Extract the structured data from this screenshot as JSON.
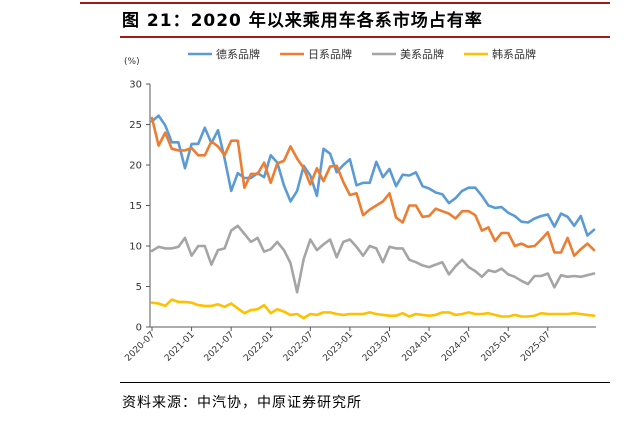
{
  "figure": {
    "title": "图 21：2020 年以来乘用车各系市场占有率",
    "source": "资料来源：中汽协，中原证券研究所"
  },
  "chart_data": {
    "type": "line",
    "ylabel": "(%)",
    "ylim": [
      0,
      30
    ],
    "yticks": [
      "0",
      "5",
      "10",
      "15",
      "20",
      "25",
      "30"
    ],
    "xtick_labels": [
      "2020-07",
      "2021-01",
      "2021-07",
      "2022-01",
      "2022-07",
      "2023-01",
      "2023-07",
      "2024-01",
      "2024-07",
      "2025-01",
      "2025-07"
    ],
    "grid": false,
    "legend_position": "top",
    "series": [
      {
        "name": "德系品牌",
        "color": "#5b9bd5",
        "values": [
          25.4,
          26.1,
          24.9,
          22.8,
          22.8,
          19.6,
          22.6,
          22.6,
          24.6,
          22.7,
          24.3,
          20.8,
          16.8,
          19.0,
          18.4,
          18.4,
          19.0,
          18.5,
          21.2,
          20.3,
          17.5,
          15.5,
          16.8,
          19.9,
          18.7,
          16.2,
          22.0,
          21.4,
          19.1,
          20.0,
          20.7,
          17.5,
          17.8,
          17.8,
          20.4,
          18.5,
          19.5,
          17.4,
          18.8,
          18.7,
          19.1,
          17.4,
          17.1,
          16.6,
          16.4,
          15.3,
          15.9,
          16.8,
          17.2,
          17.2,
          16.2,
          15.0,
          14.7,
          14.8,
          14.1,
          13.7,
          13.0,
          12.9,
          13.4,
          13.7,
          13.9,
          12.4,
          14.0,
          13.6,
          12.5,
          13.7,
          11.3,
          12.0
        ]
      },
      {
        "name": "日系品牌",
        "color": "#ed7d31",
        "values": [
          25.8,
          22.4,
          24.0,
          22.0,
          21.8,
          21.8,
          22.1,
          21.2,
          21.2,
          22.9,
          22.3,
          21.2,
          23.0,
          23.0,
          17.2,
          18.9,
          18.9,
          20.3,
          17.8,
          20.2,
          20.5,
          22.3,
          20.8,
          19.6,
          17.6,
          19.6,
          18.0,
          19.8,
          19.9,
          17.9,
          16.3,
          16.5,
          13.8,
          14.5,
          15.0,
          15.5,
          16.5,
          13.5,
          12.9,
          15.0,
          15.0,
          13.6,
          13.7,
          14.6,
          14.3,
          14.0,
          13.4,
          14.3,
          14.3,
          13.8,
          11.9,
          12.3,
          10.6,
          11.6,
          11.6,
          10.0,
          10.3,
          9.9,
          10.0,
          10.8,
          11.7,
          9.2,
          9.2,
          11.0,
          8.8,
          9.6,
          10.3,
          9.5
        ]
      },
      {
        "name": "美系品牌",
        "color": "#a5a5a5",
        "values": [
          9.4,
          9.9,
          9.7,
          9.7,
          9.9,
          11.0,
          8.8,
          10.0,
          10.0,
          7.7,
          9.5,
          9.7,
          11.9,
          12.5,
          11.5,
          10.5,
          11.0,
          9.3,
          9.6,
          10.5,
          9.5,
          7.9,
          4.3,
          8.4,
          10.8,
          9.5,
          10.2,
          10.8,
          8.6,
          10.5,
          10.8,
          9.9,
          8.8,
          10.0,
          9.7,
          8.0,
          9.9,
          9.7,
          9.7,
          8.3,
          8.0,
          7.6,
          7.4,
          7.7,
          8.0,
          6.5,
          7.5,
          8.3,
          7.4,
          6.9,
          6.2,
          7.0,
          6.8,
          7.2,
          6.5,
          6.2,
          5.7,
          5.3,
          6.3,
          6.3,
          6.6,
          4.9,
          6.4,
          6.2,
          6.3,
          6.2,
          6.4,
          6.6
        ]
      },
      {
        "name": "韩系品牌",
        "color": "#ffc000",
        "values": [
          3.0,
          2.9,
          2.6,
          3.4,
          3.1,
          3.1,
          3.0,
          2.7,
          2.6,
          2.6,
          2.8,
          2.5,
          2.9,
          2.3,
          1.7,
          2.1,
          2.2,
          2.7,
          1.7,
          2.2,
          1.9,
          1.5,
          1.6,
          1.1,
          1.6,
          1.5,
          1.8,
          1.8,
          1.6,
          1.5,
          1.6,
          1.6,
          1.6,
          1.8,
          1.6,
          1.5,
          1.4,
          1.4,
          1.7,
          1.3,
          1.6,
          1.5,
          1.4,
          1.5,
          1.8,
          1.8,
          1.5,
          1.6,
          1.8,
          1.6,
          1.6,
          1.7,
          1.5,
          1.3,
          1.3,
          1.5,
          1.3,
          1.3,
          1.4,
          1.7,
          1.6,
          1.6,
          1.6,
          1.6,
          1.7,
          1.6,
          1.5,
          1.4
        ]
      }
    ]
  }
}
